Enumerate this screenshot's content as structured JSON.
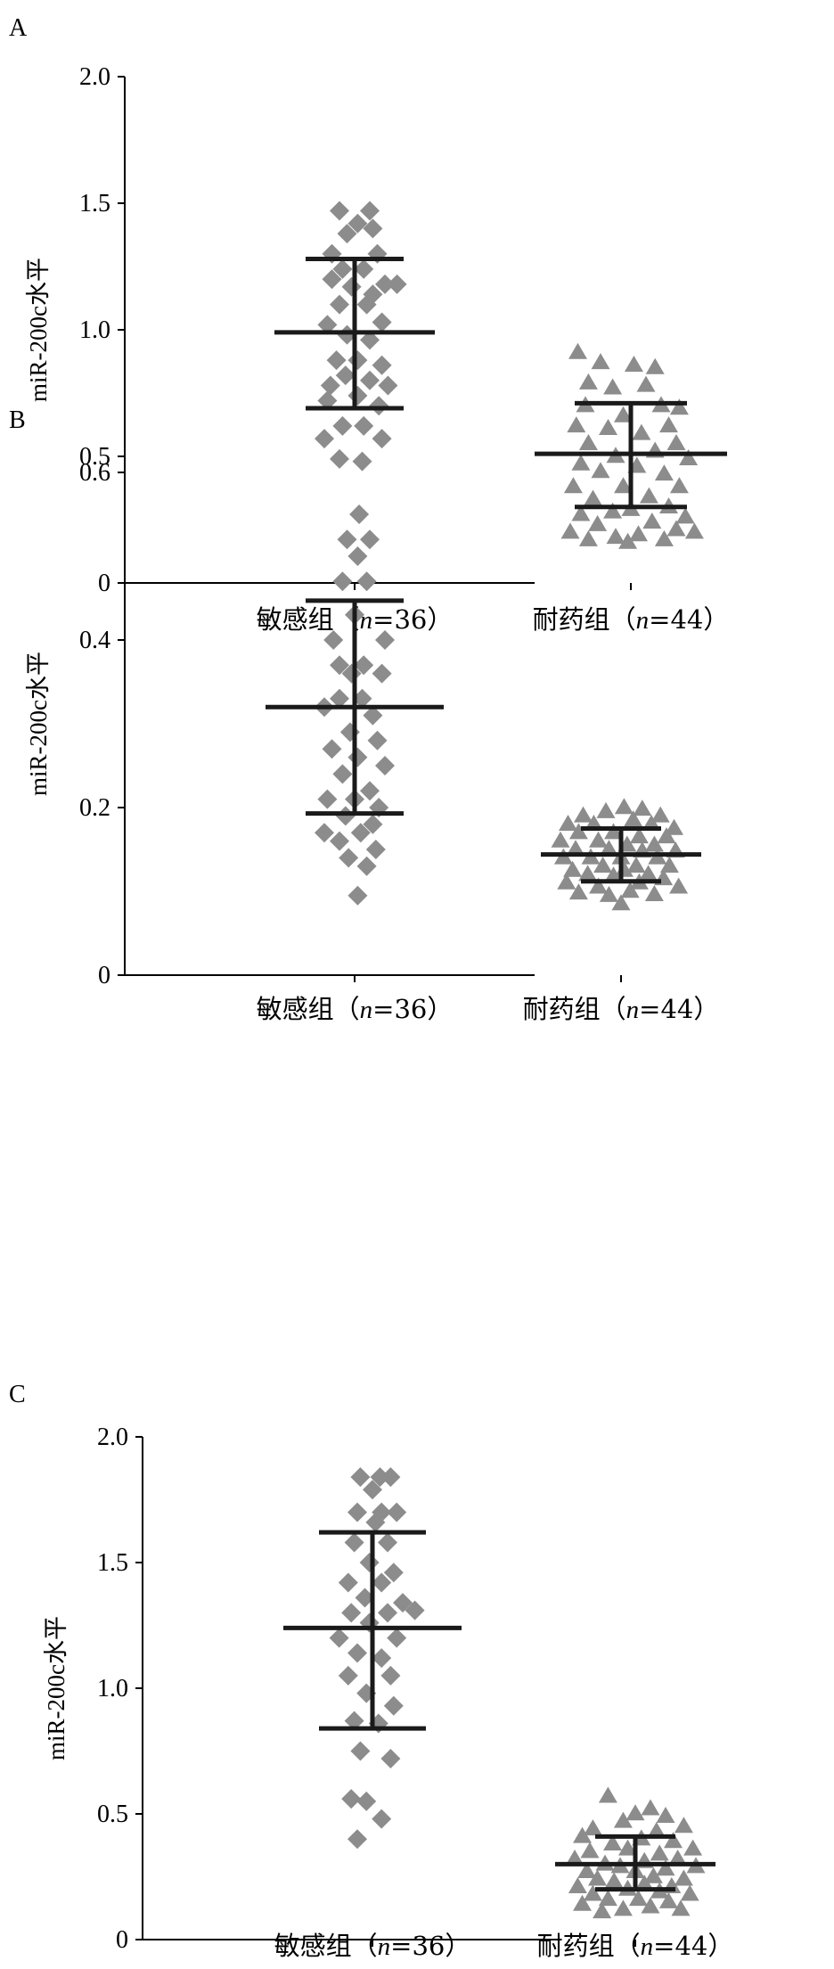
{
  "chart_data": [
    {
      "type": "scatter",
      "panel": "A",
      "ylabel": "miR-200c水平",
      "ylim": [
        0,
        2.0
      ],
      "yticks": [
        "0",
        "0.5",
        "1.0",
        "1.5",
        "2.0"
      ],
      "categories": [
        "敏感组（n=36）",
        "耐药组（n=44）"
      ],
      "category_parts": [
        {
          "pre": "敏感组（",
          "italic": "n",
          "post": "=36）"
        },
        {
          "pre": "耐药组（",
          "italic": "n",
          "post": "=44）"
        }
      ],
      "series": [
        {
          "marker": "diamond",
          "category": 0,
          "mean": 0.99,
          "sd_upper": 1.28,
          "sd_lower": 0.69,
          "points": [
            [
              -0.1,
              1.47
            ],
            [
              0.1,
              1.47
            ],
            [
              0.02,
              1.42
            ],
            [
              -0.05,
              1.38
            ],
            [
              0.12,
              1.4
            ],
            [
              -0.15,
              1.3
            ],
            [
              0.15,
              1.3
            ],
            [
              -0.08,
              1.24
            ],
            [
              0.06,
              1.24
            ],
            [
              -0.15,
              1.2
            ],
            [
              0.2,
              1.18
            ],
            [
              0.28,
              1.18
            ],
            [
              -0.02,
              1.17
            ],
            [
              0.12,
              1.14
            ],
            [
              -0.1,
              1.1
            ],
            [
              0.08,
              1.1
            ],
            [
              -0.18,
              1.02
            ],
            [
              0.18,
              1.03
            ],
            [
              -0.05,
              0.98
            ],
            [
              0.1,
              0.96
            ],
            [
              -0.12,
              0.88
            ],
            [
              0.02,
              0.88
            ],
            [
              0.18,
              0.86
            ],
            [
              -0.06,
              0.82
            ],
            [
              0.1,
              0.8
            ],
            [
              -0.16,
              0.78
            ],
            [
              0.22,
              0.78
            ],
            [
              0.02,
              0.74
            ],
            [
              -0.18,
              0.72
            ],
            [
              0.16,
              0.7
            ],
            [
              -0.08,
              0.62
            ],
            [
              0.06,
              0.62
            ],
            [
              -0.2,
              0.57
            ],
            [
              0.18,
              0.57
            ],
            [
              -0.1,
              0.49
            ],
            [
              0.05,
              0.48
            ]
          ]
        },
        {
          "marker": "triangle",
          "category": 1,
          "mean": 0.51,
          "sd_upper": 0.71,
          "sd_lower": 0.3,
          "points": [
            [
              -0.35,
              0.91
            ],
            [
              -0.2,
              0.87
            ],
            [
              0.02,
              0.86
            ],
            [
              0.16,
              0.85
            ],
            [
              -0.28,
              0.79
            ],
            [
              0.1,
              0.78
            ],
            [
              -0.12,
              0.77
            ],
            [
              -0.3,
              0.7
            ],
            [
              0.2,
              0.7
            ],
            [
              0.32,
              0.69
            ],
            [
              -0.05,
              0.66
            ],
            [
              0.25,
              0.62
            ],
            [
              -0.36,
              0.62
            ],
            [
              -0.15,
              0.61
            ],
            [
              0.07,
              0.59
            ],
            [
              -0.28,
              0.55
            ],
            [
              0.3,
              0.55
            ],
            [
              0.16,
              0.52
            ],
            [
              -0.1,
              0.5
            ],
            [
              0.38,
              0.49
            ],
            [
              -0.33,
              0.47
            ],
            [
              0.04,
              0.46
            ],
            [
              -0.2,
              0.44
            ],
            [
              0.22,
              0.43
            ],
            [
              -0.38,
              0.38
            ],
            [
              -0.05,
              0.38
            ],
            [
              0.32,
              0.38
            ],
            [
              0.12,
              0.34
            ],
            [
              -0.25,
              0.33
            ],
            [
              0.25,
              0.3
            ],
            [
              -0.12,
              0.28
            ],
            [
              0.0,
              0.29
            ],
            [
              -0.33,
              0.27
            ],
            [
              0.36,
              0.26
            ],
            [
              0.14,
              0.24
            ],
            [
              -0.22,
              0.23
            ],
            [
              0.3,
              0.21
            ],
            [
              -0.4,
              0.2
            ],
            [
              0.05,
              0.19
            ],
            [
              -0.1,
              0.18
            ],
            [
              0.42,
              0.2
            ],
            [
              -0.28,
              0.17
            ],
            [
              0.22,
              0.17
            ],
            [
              -0.02,
              0.16
            ]
          ]
        }
      ]
    },
    {
      "type": "scatter",
      "panel": "B",
      "ylabel": "miR-200c水平",
      "ylim": [
        0,
        0.6
      ],
      "yticks": [
        "0",
        "0.2",
        "0.4",
        "0.6"
      ],
      "categories": [
        "敏感组（n=36）",
        "耐药组（n=44）"
      ],
      "category_parts": [
        {
          "pre": "敏感组（",
          "italic": "n",
          "post": "=36）"
        },
        {
          "pre": "耐药组（",
          "italic": "n",
          "post": "=44）"
        }
      ],
      "series": [
        {
          "marker": "diamond",
          "category": 0,
          "mean": 0.32,
          "sd_upper": 0.447,
          "sd_lower": 0.193,
          "points": [
            [
              0.03,
              0.55
            ],
            [
              -0.05,
              0.52
            ],
            [
              0.1,
              0.52
            ],
            [
              0.02,
              0.5
            ],
            [
              -0.08,
              0.47
            ],
            [
              0.08,
              0.47
            ],
            [
              0.0,
              0.43
            ],
            [
              -0.14,
              0.4
            ],
            [
              0.2,
              0.4
            ],
            [
              -0.1,
              0.37
            ],
            [
              0.06,
              0.37
            ],
            [
              -0.02,
              0.36
            ],
            [
              0.18,
              0.36
            ],
            [
              -0.1,
              0.33
            ],
            [
              0.05,
              0.33
            ],
            [
              -0.2,
              0.32
            ],
            [
              0.12,
              0.31
            ],
            [
              -0.03,
              0.29
            ],
            [
              0.15,
              0.28
            ],
            [
              -0.15,
              0.27
            ],
            [
              0.02,
              0.26
            ],
            [
              0.2,
              0.25
            ],
            [
              -0.08,
              0.24
            ],
            [
              0.1,
              0.22
            ],
            [
              -0.18,
              0.21
            ],
            [
              0.0,
              0.21
            ],
            [
              0.16,
              0.2
            ],
            [
              -0.06,
              0.19
            ],
            [
              0.12,
              0.18
            ],
            [
              -0.2,
              0.17
            ],
            [
              0.04,
              0.17
            ],
            [
              -0.1,
              0.16
            ],
            [
              0.14,
              0.15
            ],
            [
              -0.04,
              0.14
            ],
            [
              0.08,
              0.13
            ],
            [
              0.02,
              0.095
            ]
          ]
        },
        {
          "marker": "triangle",
          "category": 1,
          "mean": 0.144,
          "sd_upper": 0.175,
          "sd_lower": 0.112,
          "points": [
            [
              -0.25,
              0.19
            ],
            [
              -0.1,
              0.195
            ],
            [
              0.02,
              0.2
            ],
            [
              0.14,
              0.198
            ],
            [
              0.26,
              0.19
            ],
            [
              -0.35,
              0.18
            ],
            [
              -0.18,
              0.18
            ],
            [
              0.08,
              0.185
            ],
            [
              0.2,
              0.18
            ],
            [
              0.35,
              0.175
            ],
            [
              -0.28,
              0.17
            ],
            [
              -0.05,
              0.17
            ],
            [
              0.12,
              0.165
            ],
            [
              0.3,
              0.165
            ],
            [
              -0.4,
              0.16
            ],
            [
              -0.15,
              0.16
            ],
            [
              0.04,
              0.155
            ],
            [
              0.22,
              0.155
            ],
            [
              -0.3,
              0.15
            ],
            [
              -0.08,
              0.15
            ],
            [
              0.14,
              0.148
            ],
            [
              0.36,
              0.148
            ],
            [
              -0.38,
              0.14
            ],
            [
              -0.2,
              0.14
            ],
            [
              0.0,
              0.14
            ],
            [
              0.24,
              0.14
            ],
            [
              -0.12,
              0.13
            ],
            [
              0.1,
              0.13
            ],
            [
              0.32,
              0.13
            ],
            [
              -0.32,
              0.125
            ],
            [
              0.02,
              0.125
            ],
            [
              0.18,
              0.12
            ],
            [
              -0.22,
              0.12
            ],
            [
              -0.05,
              0.118
            ],
            [
              0.28,
              0.115
            ],
            [
              -0.36,
              0.11
            ],
            [
              0.12,
              0.11
            ],
            [
              -0.15,
              0.105
            ],
            [
              0.06,
              0.1
            ],
            [
              0.38,
              0.105
            ],
            [
              -0.28,
              0.098
            ],
            [
              0.22,
              0.096
            ],
            [
              -0.08,
              0.095
            ],
            [
              0.0,
              0.085
            ]
          ]
        }
      ]
    },
    {
      "type": "scatter",
      "panel": "C",
      "ylabel": "miR-200c水平",
      "ylim": [
        0,
        2.0
      ],
      "yticks": [
        "0",
        "0.5",
        "1.0",
        "1.5",
        "2.0"
      ],
      "categories": [
        "敏感组（n=36）",
        "耐药组（n=44）"
      ],
      "category_parts": [
        {
          "pre": "敏感组（",
          "italic": "n",
          "post": "=36）"
        },
        {
          "pre": "耐药组（",
          "italic": "n",
          "post": "=44）"
        }
      ],
      "series": [
        {
          "marker": "diamond",
          "category": 0,
          "mean": 1.24,
          "sd_upper": 1.62,
          "sd_lower": 0.84,
          "points": [
            [
              -0.08,
              1.84
            ],
            [
              0.05,
              1.84
            ],
            [
              0.12,
              1.84
            ],
            [
              0.0,
              1.79
            ],
            [
              -0.1,
              1.7
            ],
            [
              0.06,
              1.7
            ],
            [
              0.16,
              1.7
            ],
            [
              0.02,
              1.66
            ],
            [
              -0.12,
              1.58
            ],
            [
              0.1,
              1.58
            ],
            [
              -0.02,
              1.5
            ],
            [
              0.14,
              1.46
            ],
            [
              -0.16,
              1.42
            ],
            [
              0.06,
              1.42
            ],
            [
              -0.05,
              1.36
            ],
            [
              0.2,
              1.34
            ],
            [
              -0.14,
              1.3
            ],
            [
              0.1,
              1.3
            ],
            [
              0.28,
              1.31
            ],
            [
              -0.02,
              1.26
            ],
            [
              -0.22,
              1.2
            ],
            [
              0.16,
              1.2
            ],
            [
              -0.1,
              1.14
            ],
            [
              0.06,
              1.12
            ],
            [
              -0.16,
              1.05
            ],
            [
              0.12,
              1.05
            ],
            [
              -0.04,
              0.98
            ],
            [
              0.14,
              0.93
            ],
            [
              -0.12,
              0.87
            ],
            [
              0.04,
              0.86
            ],
            [
              -0.08,
              0.75
            ],
            [
              0.12,
              0.72
            ],
            [
              -0.14,
              0.56
            ],
            [
              -0.04,
              0.55
            ],
            [
              0.06,
              0.48
            ],
            [
              -0.1,
              0.4
            ]
          ]
        },
        {
          "marker": "triangle",
          "category": 1,
          "mean": 0.3,
          "sd_upper": 0.41,
          "sd_lower": 0.2,
          "points": [
            [
              -0.18,
              0.57
            ],
            [
              0.1,
              0.52
            ],
            [
              0.0,
              0.5
            ],
            [
              0.2,
              0.49
            ],
            [
              -0.08,
              0.47
            ],
            [
              0.32,
              0.45
            ],
            [
              -0.28,
              0.44
            ],
            [
              0.14,
              0.43
            ],
            [
              -0.35,
              0.41
            ],
            [
              0.04,
              0.4
            ],
            [
              0.25,
              0.39
            ],
            [
              -0.15,
              0.38
            ],
            [
              0.38,
              0.36
            ],
            [
              -0.05,
              0.36
            ],
            [
              -0.3,
              0.35
            ],
            [
              0.16,
              0.34
            ],
            [
              -0.4,
              0.32
            ],
            [
              0.28,
              0.32
            ],
            [
              0.06,
              0.31
            ],
            [
              -0.2,
              0.3
            ],
            [
              -0.1,
              0.29
            ],
            [
              0.4,
              0.29
            ],
            [
              0.2,
              0.28
            ],
            [
              -0.32,
              0.27
            ],
            [
              0.0,
              0.27
            ],
            [
              0.12,
              0.25
            ],
            [
              -0.25,
              0.24
            ],
            [
              0.32,
              0.24
            ],
            [
              -0.14,
              0.23
            ],
            [
              0.06,
              0.22
            ],
            [
              -0.38,
              0.21
            ],
            [
              0.24,
              0.21
            ],
            [
              -0.05,
              0.2
            ],
            [
              0.16,
              0.19
            ],
            [
              -0.28,
              0.18
            ],
            [
              0.36,
              0.18
            ],
            [
              -0.18,
              0.16
            ],
            [
              0.02,
              0.16
            ],
            [
              0.22,
              0.15
            ],
            [
              -0.35,
              0.14
            ],
            [
              0.1,
              0.13
            ],
            [
              -0.08,
              0.12
            ],
            [
              0.3,
              0.12
            ],
            [
              -0.22,
              0.11
            ]
          ]
        }
      ]
    }
  ]
}
